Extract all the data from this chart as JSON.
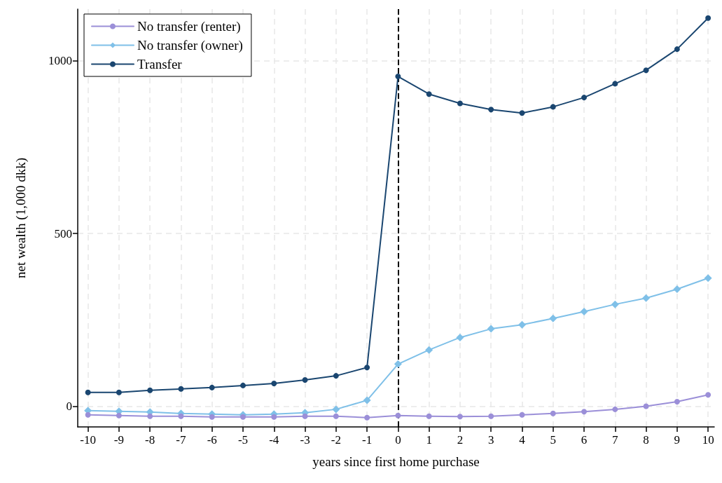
{
  "chart_data": {
    "type": "line",
    "xlabel": "years since first home purchase",
    "ylabel": "net wealth (1,000 dkk)",
    "x": [
      -10,
      -9,
      -8,
      -7,
      -6,
      -5,
      -4,
      -3,
      -2,
      -1,
      0,
      1,
      2,
      3,
      4,
      5,
      6,
      7,
      8,
      9,
      10
    ],
    "series": [
      {
        "name": "No transfer (renter)",
        "color": "#9b8fd8",
        "marker": "circle",
        "values": [
          -25,
          -27,
          -29,
          -29,
          -31,
          -31,
          -31,
          -29,
          -29,
          -33,
          -27,
          -29,
          -30,
          -29,
          -25,
          -21,
          -16,
          -9,
          0,
          13,
          33
        ]
      },
      {
        "name": "No transfer (owner)",
        "color": "#7fc0e8",
        "marker": "diamond",
        "values": [
          -13,
          -15,
          -17,
          -21,
          -23,
          -25,
          -23,
          -19,
          -9,
          17,
          122,
          163,
          199,
          224,
          236,
          254,
          274,
          295,
          313,
          339,
          371
        ]
      },
      {
        "name": "Transfer",
        "color": "#1a4670",
        "marker": "circle",
        "values": [
          40,
          40,
          46,
          50,
          54,
          60,
          66,
          76,
          88,
          112,
          955,
          904,
          877,
          859,
          849,
          867,
          894,
          934,
          973,
          1034,
          1124
        ]
      }
    ],
    "xlim": [
      -10.33,
      10.2
    ],
    "xticks": [
      -10,
      -9,
      -8,
      -7,
      -6,
      -5,
      -4,
      -3,
      -2,
      -1,
      0,
      1,
      2,
      3,
      4,
      5,
      6,
      7,
      8,
      9,
      10
    ],
    "ylim": [
      -60,
      1150
    ],
    "yticks": [
      0,
      500,
      1000
    ],
    "ref_lines": [
      {
        "axis": "x",
        "value": 0,
        "color": "#000000",
        "line_style": "dashed"
      }
    ],
    "grid": true,
    "legend": "top left"
  }
}
